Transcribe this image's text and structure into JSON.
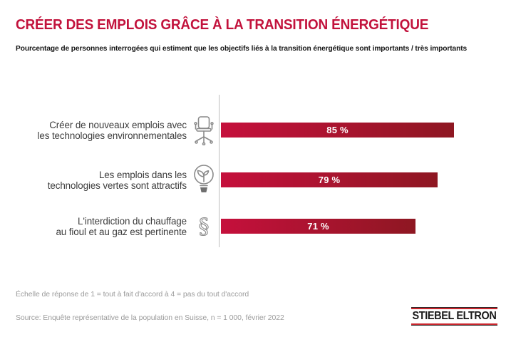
{
  "header": {
    "title": "CRÉER DES EMPLOIS GRÂCE À LA TRANSITION ÉNERGÉTIQUE",
    "subtitle": "Pourcentage de personnes interrogées qui estiment que les objectifs liés à la transition énergétique sont importants / très importants"
  },
  "chart_data": {
    "type": "bar",
    "orientation": "horizontal",
    "title": "CRÉER DES EMPLOIS GRÂCE À LA TRANSITION ÉNERGÉTIQUE",
    "subtitle": "Pourcentage de personnes interrogées qui estiment que les objectifs liés à la transition énergétique sont importants / très importants",
    "xlim": [
      0,
      100
    ],
    "grid": false,
    "legend": false,
    "categories": [
      "Créer de nouveaux emplois avec les technologies environnementales",
      "Les emplois dans les technologies vertes sont attractifs",
      "L'interdiction du chauffage au fioul et au gaz est pertinente"
    ],
    "values": [
      85,
      79,
      71
    ],
    "rows": [
      {
        "label_line1": "Créer de nouveaux emplois avec",
        "label_line2": "les technologies environnementales",
        "icon": "office-chair-icon",
        "value": 85,
        "value_label": "85 %"
      },
      {
        "label_line1": "Les emplois dans les",
        "label_line2": "technologies vertes sont attractifs",
        "icon": "lightbulb-leaf-icon",
        "value": 79,
        "value_label": "79 %"
      },
      {
        "label_line1": "L'interdiction du chauffage",
        "label_line2": "au fioul et au gaz est pertinente",
        "icon": "section-sign-icon",
        "value": 71,
        "value_label": "71 %"
      }
    ]
  },
  "footnotes": {
    "scale": "Échelle de réponse de 1 = tout à fait d'accord à 4 = pas du tout d'accord",
    "source": "Source: Enquête représentative de la population en Suisse, n = 1 000, février 2022"
  },
  "logo": {
    "text": "STIEBEL ELTRON"
  },
  "colors": {
    "title_red": "#c2123c",
    "bar_gradient_left": "#c5103c",
    "bar_gradient_right": "#8e1722",
    "bar_value_text": "#ffffff",
    "label_gray": "#3c3c3c",
    "icon_gray": "#8a8a8a",
    "footnote_gray": "#9c9c9c",
    "axis_gray": "#bdbdbd",
    "logo_red": "#c9252c",
    "logo_black": "#1a1a1a"
  }
}
